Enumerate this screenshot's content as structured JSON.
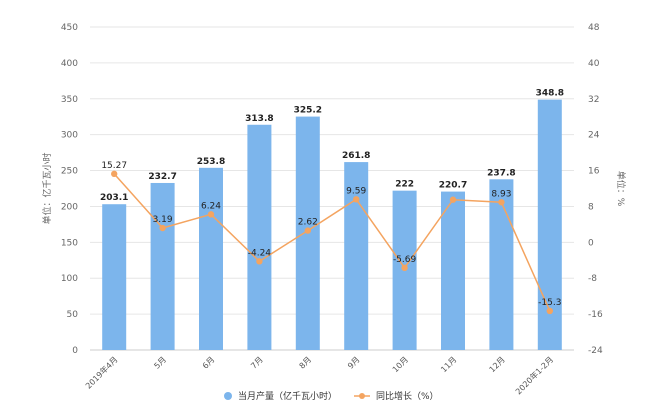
{
  "chart_data": {
    "type": "bar+line",
    "categories": [
      "2019年4月",
      "5月",
      "6月",
      "7月",
      "8月",
      "9月",
      "10月",
      "11月",
      "12月",
      "2020年1-2月"
    ],
    "series": [
      {
        "name": "当月产量（亿千瓦小时）",
        "type": "bar",
        "axis": "left",
        "color": "#7cb5ec",
        "values": [
          203.1,
          232.7,
          253.8,
          313.8,
          325.2,
          261.8,
          222,
          220.7,
          237.8,
          348.8
        ]
      },
      {
        "name": "同比增长（%）",
        "type": "line",
        "axis": "right",
        "color": "#f4a460",
        "values": [
          15.27,
          3.19,
          6.24,
          -4.24,
          2.62,
          9.59,
          -5.69,
          9.5,
          8.93,
          -15.3
        ]
      }
    ],
    "point_labels": [
      "15.27",
      "3.19",
      "6.24",
      "-4.24",
      "2.62",
      "9.59",
      "-5.69",
      "",
      "8.93",
      "-15.3"
    ],
    "y_left": {
      "label": "单位：亿千瓦小时",
      "min": 0,
      "max": 450,
      "ticks": [
        0,
        50,
        100,
        150,
        200,
        250,
        300,
        350,
        400,
        450
      ]
    },
    "y_right": {
      "label": "单位：%",
      "min": -24,
      "max": 48,
      "ticks": [
        -24,
        -16,
        -8,
        0,
        8,
        16,
        24,
        32,
        40,
        48
      ]
    },
    "grid": true,
    "legend_position": "bottom"
  }
}
